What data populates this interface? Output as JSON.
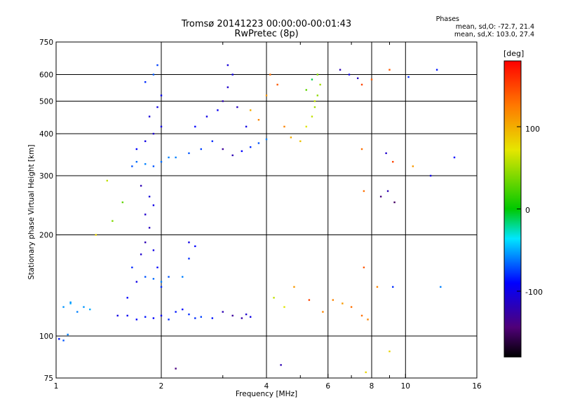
{
  "header": {
    "title": "Tromsø 20141223 00:00:00-00:01:43",
    "subtitle": "RwPretec (8p)",
    "stats_title": "Phases",
    "stats_o": "mean, sd,O: -72.7, 21.4",
    "stats_x": "mean, sd,X: 103.0, 27.4"
  },
  "colorbar": {
    "unit": "[deg]",
    "ticks": [
      "100",
      "0",
      "-100"
    ]
  },
  "chart_data": {
    "type": "scatter",
    "xlabel": "Frequency [MHz]",
    "ylabel": "Stationary phase Virtual Height [km]",
    "x_scale": "log",
    "y_scale": "log",
    "xlim": [
      1,
      16
    ],
    "ylim": [
      75,
      750
    ],
    "x_ticks": [
      "1",
      "2",
      "4",
      "6",
      "8",
      "10",
      "16"
    ],
    "x_minor_ticks": [
      "3",
      "5",
      "7",
      "9"
    ],
    "y_ticks": [
      "75",
      "100",
      "200",
      "300",
      "400",
      "500",
      "600",
      "750"
    ],
    "color_scale": "rainbow",
    "color_range": [
      -180,
      180
    ],
    "grid": true,
    "series": [
      {
        "points": [
          [
            1.02,
            98,
            -85
          ],
          [
            1.05,
            97,
            -70
          ],
          [
            1.08,
            101,
            -60
          ],
          [
            1.05,
            122,
            -55
          ],
          [
            1.1,
            125,
            -50
          ],
          [
            1.15,
            118,
            -60
          ],
          [
            1.2,
            122,
            -55
          ],
          [
            1.25,
            120,
            -50
          ],
          [
            1.1,
            126,
            -55
          ],
          [
            1.5,
            115,
            -100
          ],
          [
            1.6,
            130,
            -90
          ],
          [
            1.65,
            160,
            -80
          ],
          [
            1.7,
            145,
            -100
          ],
          [
            1.75,
            175,
            -110
          ],
          [
            1.8,
            190,
            -120
          ],
          [
            1.85,
            210,
            -115
          ],
          [
            1.9,
            180,
            -100
          ],
          [
            1.95,
            160,
            -90
          ],
          [
            2.0,
            140,
            -80
          ],
          [
            1.8,
            230,
            -110
          ],
          [
            1.85,
            260,
            -105
          ],
          [
            1.75,
            280,
            -120
          ],
          [
            1.9,
            245,
            -100
          ],
          [
            1.6,
            115,
            -95
          ],
          [
            1.7,
            112,
            -90
          ],
          [
            1.8,
            114,
            -85
          ],
          [
            1.9,
            113,
            -90
          ],
          [
            2.0,
            115,
            -95
          ],
          [
            2.1,
            112,
            -80
          ],
          [
            2.2,
            118,
            -85
          ],
          [
            2.3,
            120,
            -90
          ],
          [
            2.4,
            116,
            -80
          ],
          [
            2.5,
            113,
            -80
          ],
          [
            2.6,
            114,
            -75
          ],
          [
            2.8,
            113,
            -85
          ],
          [
            1.8,
            150,
            -70
          ],
          [
            1.9,
            148,
            -65
          ],
          [
            2.0,
            145,
            -60
          ],
          [
            2.1,
            150,
            -70
          ],
          [
            2.3,
            150,
            -60
          ],
          [
            2.4,
            170,
            -80
          ],
          [
            2.5,
            185,
            -90
          ],
          [
            2.4,
            190,
            -100
          ],
          [
            1.65,
            320,
            -70
          ],
          [
            1.7,
            330,
            -65
          ],
          [
            1.8,
            325,
            -60
          ],
          [
            1.9,
            320,
            -70
          ],
          [
            2.0,
            330,
            -65
          ],
          [
            2.1,
            340,
            -60
          ],
          [
            1.7,
            360,
            -90
          ],
          [
            1.8,
            380,
            -100
          ],
          [
            1.9,
            400,
            -110
          ],
          [
            2.0,
            420,
            -100
          ],
          [
            1.85,
            450,
            -105
          ],
          [
            1.95,
            480,
            -100
          ],
          [
            2.0,
            520,
            -95
          ],
          [
            1.8,
            570,
            -80
          ],
          [
            1.9,
            600,
            -70
          ],
          [
            1.95,
            640,
            -75
          ],
          [
            2.2,
            340,
            -60
          ],
          [
            2.4,
            350,
            -70
          ],
          [
            2.6,
            360,
            -75
          ],
          [
            2.8,
            380,
            -80
          ],
          [
            2.5,
            420,
            -90
          ],
          [
            2.7,
            450,
            -100
          ],
          [
            2.9,
            470,
            -95
          ],
          [
            3.0,
            500,
            -120
          ],
          [
            3.1,
            550,
            -110
          ],
          [
            3.2,
            600,
            -100
          ],
          [
            3.1,
            640,
            -105
          ],
          [
            3.0,
            360,
            -130
          ],
          [
            3.2,
            345,
            -120
          ],
          [
            3.4,
            355,
            -90
          ],
          [
            3.6,
            365,
            -80
          ],
          [
            3.8,
            375,
            -70
          ],
          [
            4.0,
            385,
            -60
          ],
          [
            3.5,
            420,
            -100
          ],
          [
            3.3,
            480,
            -115
          ],
          [
            3.6,
            470,
            100
          ],
          [
            3.8,
            440,
            120
          ],
          [
            4.0,
            520,
            110
          ],
          [
            4.1,
            600,
            130
          ],
          [
            4.3,
            560,
            140
          ],
          [
            4.5,
            420,
            120
          ],
          [
            4.7,
            390,
            100
          ],
          [
            5.0,
            380,
            90
          ],
          [
            5.2,
            420,
            70
          ],
          [
            5.4,
            450,
            60
          ],
          [
            5.5,
            480,
            50
          ],
          [
            5.6,
            520,
            45
          ],
          [
            5.7,
            560,
            50
          ],
          [
            5.6,
            600,
            40
          ],
          [
            5.4,
            580,
            -10
          ],
          [
            5.2,
            540,
            30
          ],
          [
            5.5,
            500,
            60
          ],
          [
            3.0,
            118,
            -120
          ],
          [
            3.2,
            115,
            -130
          ],
          [
            3.4,
            113,
            -125
          ],
          [
            3.5,
            116,
            -110
          ],
          [
            3.6,
            114,
            -100
          ],
          [
            4.2,
            130,
            60
          ],
          [
            4.5,
            122,
            70
          ],
          [
            4.8,
            140,
            110
          ],
          [
            5.3,
            128,
            150
          ],
          [
            5.8,
            118,
            120
          ],
          [
            6.2,
            128,
            120
          ],
          [
            6.6,
            125,
            110
          ],
          [
            7.0,
            122,
            130
          ],
          [
            7.5,
            115,
            130
          ],
          [
            7.8,
            112,
            120
          ],
          [
            6.5,
            620,
            -120
          ],
          [
            6.9,
            600,
            -100
          ],
          [
            7.3,
            585,
            -115
          ],
          [
            7.5,
            560,
            150
          ],
          [
            8.0,
            580,
            140
          ],
          [
            9.0,
            620,
            140
          ],
          [
            10.2,
            590,
            -80
          ],
          [
            12.3,
            620,
            -85
          ],
          [
            7.5,
            360,
            130
          ],
          [
            8.8,
            350,
            -110
          ],
          [
            9.2,
            330,
            150
          ],
          [
            10.5,
            320,
            110
          ],
          [
            11.8,
            300,
            -100
          ],
          [
            13.8,
            340,
            -90
          ],
          [
            7.6,
            270,
            130
          ],
          [
            8.5,
            260,
            -140
          ],
          [
            8.9,
            270,
            -120
          ],
          [
            9.3,
            250,
            -150
          ],
          [
            7.6,
            160,
            140
          ],
          [
            8.3,
            140,
            120
          ],
          [
            9.2,
            140,
            -80
          ],
          [
            12.6,
            140,
            -60
          ],
          [
            2.2,
            80,
            -140
          ],
          [
            4.4,
            82,
            -120
          ],
          [
            7.7,
            78,
            80
          ],
          [
            9.0,
            90,
            80
          ],
          [
            1.3,
            200,
            80
          ],
          [
            1.45,
            220,
            40
          ],
          [
            1.55,
            250,
            30
          ],
          [
            1.4,
            290,
            60
          ]
        ]
      }
    ]
  }
}
